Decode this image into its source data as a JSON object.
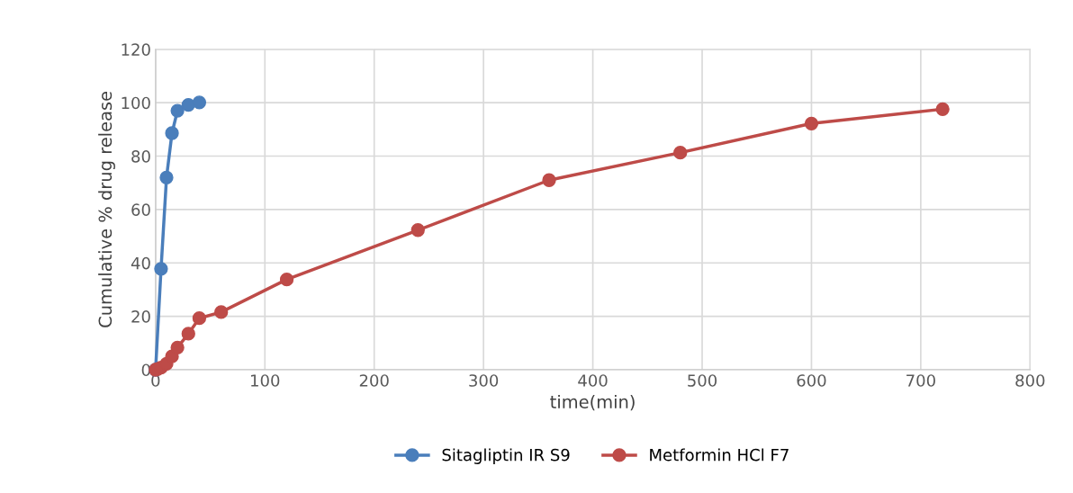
{
  "chart_data": {
    "type": "line",
    "xlabel": "time(min)",
    "ylabel": "Cumulative % drug release",
    "xlim": [
      0,
      800
    ],
    "xticks": [
      0,
      100,
      200,
      300,
      400,
      500,
      600,
      700,
      800
    ],
    "ylim": [
      0,
      120
    ],
    "yticks": [
      0,
      20,
      40,
      60,
      80,
      100,
      120
    ],
    "grid": true,
    "legend": "bottom",
    "marker": "circle",
    "line_style": "solid",
    "series": [
      {
        "name": "Sitagliptin IR S9",
        "color": "#4a7ebb",
        "x": [
          0,
          5,
          10,
          15,
          20,
          30,
          40
        ],
        "values": [
          0,
          37.8,
          72,
          88.6,
          97,
          99.2,
          100.1
        ]
      },
      {
        "name": "Metformin HCl F7",
        "color": "#be4b48",
        "x": [
          0,
          2,
          5,
          10,
          15,
          20,
          30,
          40,
          60,
          120,
          240,
          360,
          480,
          600,
          720
        ],
        "values": [
          0,
          0.3,
          0.8,
          2.2,
          5,
          8.3,
          13.5,
          19.3,
          21.6,
          33.8,
          52.3,
          71,
          81.3,
          92.2,
          97.6
        ]
      }
    ]
  }
}
